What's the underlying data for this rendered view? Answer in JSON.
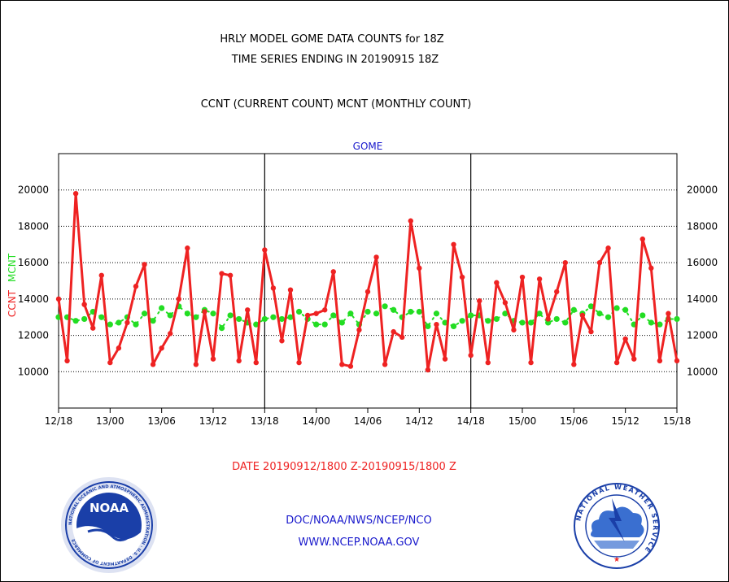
{
  "header": {
    "line1": "HRLY MODEL GOME DATA COUNTS for 18Z",
    "line2": "TIME SERIES ENDING IN 20190915 18Z",
    "line3": "CCNT (CURRENT COUNT) MCNT (MONTHLY COUNT)"
  },
  "footer": {
    "date_range": "DATE 20190912/1800 Z-20190915/1800 Z",
    "org": "DOC/NOAA/NWS/NCEP/NCO",
    "url": "WWW.NCEP.NOAA.GOV"
  },
  "logos": {
    "left_text": "NOAA",
    "left_ring_text": "NATIONAL OCEANIC AND ATMOSPHERIC ADMINISTRATION · U.S. DEPARTMENT OF COMMERCE",
    "right_ring_text": "NATIONAL WEATHER SERVICE"
  },
  "colors": {
    "ccnt": "#ee2222",
    "mcnt": "#22dd22",
    "title": "#000000",
    "subtitle_blue": "#1a1acc",
    "date_red": "#ee2222"
  },
  "chart_data": {
    "type": "line",
    "title": "GOME",
    "ylabel_parts": [
      {
        "text": "CCNT",
        "color": "#ee2222"
      },
      {
        "text": "MCNT",
        "color": "#22dd22"
      }
    ],
    "x_tick_labels": [
      "12/18",
      "13/00",
      "13/06",
      "13/12",
      "13/18",
      "14/00",
      "14/06",
      "14/12",
      "14/18",
      "15/00",
      "15/06",
      "15/12",
      "15/18"
    ],
    "xlim": [
      0,
      72
    ],
    "ylim": [
      8000,
      22000
    ],
    "y_ticks": [
      10000,
      12000,
      14000,
      16000,
      18000,
      20000
    ],
    "day_dividers_hours": [
      24,
      48
    ],
    "x_hours": [
      0,
      1,
      2,
      3,
      4,
      5,
      6,
      7,
      8,
      9,
      10,
      11,
      12,
      13,
      14,
      15,
      16,
      17,
      18,
      19,
      20,
      21,
      22,
      23,
      24,
      25,
      26,
      27,
      28,
      29,
      30,
      31,
      32,
      33,
      34,
      35,
      36,
      37,
      38,
      39,
      40,
      41,
      42,
      43,
      44,
      45,
      46,
      47,
      48,
      49,
      50,
      51,
      52,
      53,
      54,
      55,
      56,
      57,
      58,
      59,
      60,
      61,
      62,
      63,
      64,
      65,
      66,
      67,
      68,
      69,
      70,
      71,
      72
    ],
    "series": [
      {
        "name": "CCNT",
        "values": [
          14000,
          10600,
          19800,
          13700,
          12400,
          15300,
          10500,
          11300,
          12700,
          14700,
          15900,
          10400,
          11300,
          12100,
          14000,
          16800,
          10400,
          13300,
          10700,
          15400,
          15300,
          10600,
          13400,
          10500,
          16700,
          14600,
          11700,
          14500,
          10500,
          13100,
          13200,
          13400,
          15500,
          10400,
          10300,
          12300,
          14400,
          16300,
          10400,
          12200,
          11900,
          18300,
          15700,
          10100,
          12600,
          10700,
          17000,
          15200,
          10900,
          13900,
          10500,
          14900,
          13800,
          12300,
          15200,
          10500,
          15100,
          12900,
          14400,
          16000,
          10400,
          13100,
          12200,
          16000,
          16800,
          10500,
          11800,
          10700,
          17300,
          15700,
          10600,
          13200,
          10600
        ]
      },
      {
        "name": "MCNT",
        "values": [
          13000,
          13000,
          12800,
          12900,
          13300,
          13000,
          12600,
          12700,
          13000,
          12600,
          13200,
          12800,
          13500,
          13100,
          13600,
          13200,
          13000,
          13400,
          13200,
          12400,
          13100,
          12900,
          12700,
          12600,
          12900,
          13000,
          12900,
          13000,
          13300,
          12900,
          12600,
          12600,
          13100,
          12700,
          13200,
          12600,
          13300,
          13200,
          13600,
          13400,
          13000,
          13300,
          13300,
          12500,
          13200,
          12700,
          12500,
          12800,
          13100,
          13100,
          12800,
          12900,
          13200,
          12800,
          12700,
          12700,
          13200,
          12700,
          12900,
          12700,
          13400,
          13200,
          13600,
          13200,
          13000,
          13500,
          13400,
          12600,
          13100,
          12700,
          12600,
          12900,
          12900
        ]
      }
    ]
  }
}
